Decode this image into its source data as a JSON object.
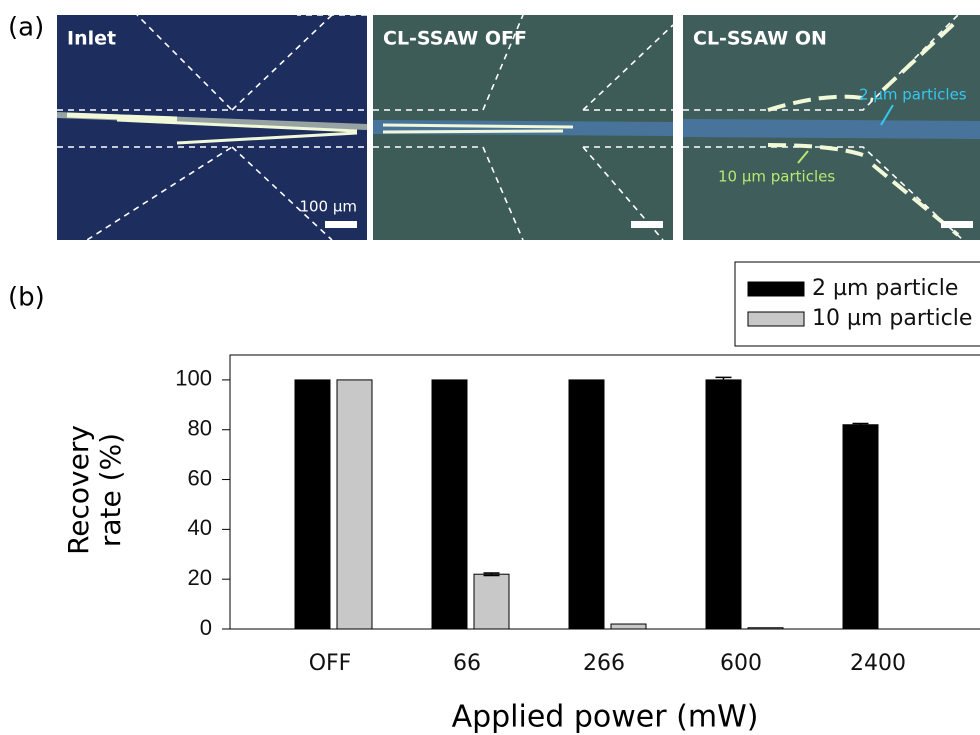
{
  "panel_a": {
    "label": "(a)",
    "images": [
      {
        "title": "Inlet"
      },
      {
        "title": "CL-SSAW OFF"
      },
      {
        "title": "CL-SSAW ON"
      }
    ],
    "scale_bar": "100 µm",
    "annotations": [
      "2 µm particles",
      "10 µm particles"
    ]
  },
  "chart_data": {
    "type": "bar",
    "panel_label": "(b)",
    "categories": [
      "OFF",
      "66",
      "266",
      "600",
      "2400"
    ],
    "series": [
      {
        "name": "2 µm particle",
        "color": "#000000",
        "values": [
          100,
          100,
          100,
          100,
          82
        ],
        "errors": [
          0,
          0,
          0,
          1,
          0.5
        ]
      },
      {
        "name": "10 µm particle",
        "color": "#c8c8c8",
        "values": [
          100,
          22,
          2,
          0.5,
          0
        ],
        "errors": [
          0,
          0.5,
          0,
          0,
          0
        ]
      }
    ],
    "x_label": "Applied power (mW)",
    "y_label": "Recovery rate (%)",
    "ylim": [
      0,
      110
    ],
    "yticks": [
      0,
      20,
      40,
      60,
      80,
      100
    ],
    "legend": "upper right"
  }
}
